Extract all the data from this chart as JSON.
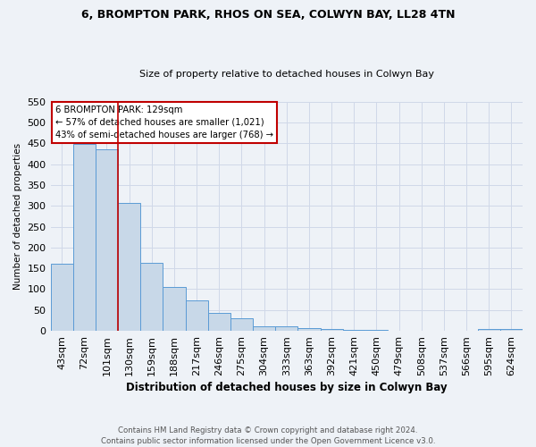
{
  "title": "6, BROMPTON PARK, RHOS ON SEA, COLWYN BAY, LL28 4TN",
  "subtitle": "Size of property relative to detached houses in Colwyn Bay",
  "xlabel": "Distribution of detached houses by size in Colwyn Bay",
  "ylabel": "Number of detached properties",
  "footer_line1": "Contains HM Land Registry data © Crown copyright and database right 2024.",
  "footer_line2": "Contains public sector information licensed under the Open Government Licence v3.0.",
  "categories": [
    "43sqm",
    "72sqm",
    "101sqm",
    "130sqm",
    "159sqm",
    "188sqm",
    "217sqm",
    "246sqm",
    "275sqm",
    "304sqm",
    "333sqm",
    "363sqm",
    "392sqm",
    "421sqm",
    "450sqm",
    "479sqm",
    "508sqm",
    "537sqm",
    "566sqm",
    "595sqm",
    "624sqm"
  ],
  "values": [
    162,
    449,
    436,
    306,
    164,
    106,
    73,
    44,
    31,
    10,
    10,
    7,
    5,
    2,
    2,
    1,
    1,
    1,
    0,
    5,
    5
  ],
  "bar_color": "#c8d8e8",
  "bar_edge_color": "#5b9bd5",
  "grid_color": "#d0d8e8",
  "background_color": "#eef2f7",
  "vline_index": 2.5,
  "vline_color": "#c00000",
  "annotation_text": "6 BROMPTON PARK: 129sqm\n← 57% of detached houses are smaller (1,021)\n43% of semi-detached houses are larger (768) →",
  "annotation_box_color": "#ffffff",
  "annotation_box_edge": "#c00000",
  "ylim": [
    0,
    550
  ],
  "yticks": [
    0,
    50,
    100,
    150,
    200,
    250,
    300,
    350,
    400,
    450,
    500,
    550
  ]
}
